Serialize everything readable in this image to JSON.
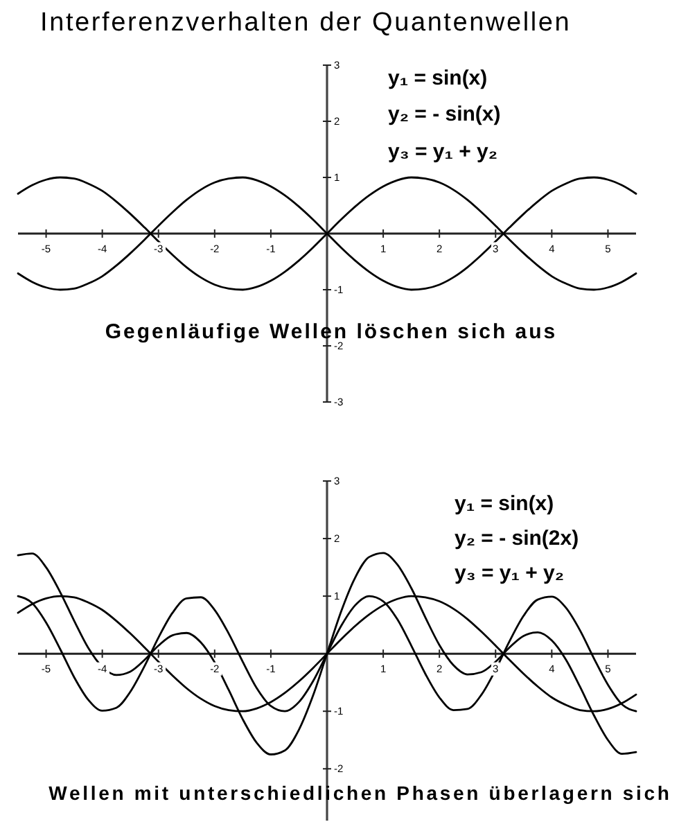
{
  "chart_data": [
    {
      "type": "line",
      "title": "Interferenzverhalten der Quantenwellen",
      "annotations": [
        "y₁ = sin(x)",
        "y₂ = - sin(x)",
        "y₃ = y₁ + y₂",
        "Gegenläufige Wellen löschen sich aus"
      ],
      "x": [
        -5.5,
        -5.25,
        -5,
        -4.75,
        -4.5,
        -4.25,
        -4,
        -3.75,
        -3.5,
        -3.25,
        -3,
        -2.75,
        -2.5,
        -2.25,
        -2,
        -1.75,
        -1.5,
        -1.25,
        -1,
        -0.75,
        -0.5,
        -0.25,
        0,
        0.25,
        0.5,
        0.75,
        1,
        1.25,
        1.5,
        1.75,
        2,
        2.25,
        2.5,
        2.75,
        3,
        3.25,
        3.5,
        3.75,
        4,
        4.25,
        4.5,
        4.75,
        5,
        5.25,
        5.5
      ],
      "xlim": [
        -5.5,
        5.5
      ],
      "ylim": [
        -3,
        3
      ],
      "xticks": [
        -5,
        -4,
        -3,
        -2,
        -1,
        1,
        2,
        3,
        4,
        5
      ],
      "yticks": [
        -3,
        -2,
        -1,
        1,
        2,
        3
      ],
      "series": [
        {
          "color": "#000000",
          "values": [
            0.71,
            0.86,
            0.96,
            1.0,
            0.98,
            0.89,
            0.76,
            0.57,
            0.35,
            0.11,
            -0.14,
            -0.38,
            -0.6,
            -0.78,
            -0.91,
            -0.98,
            -1.0,
            -0.95,
            -0.84,
            -0.68,
            -0.48,
            -0.25,
            0,
            0.25,
            0.48,
            0.68,
            0.84,
            0.95,
            1.0,
            0.98,
            0.91,
            0.78,
            0.6,
            0.38,
            0.14,
            -0.11,
            -0.35,
            -0.57,
            -0.76,
            -0.89,
            -0.98,
            -1.0,
            -0.96,
            -0.86,
            -0.71
          ]
        },
        {
          "color": "#000000",
          "values": [
            -0.71,
            -0.86,
            -0.96,
            -1.0,
            -0.98,
            -0.89,
            -0.76,
            -0.57,
            -0.35,
            -0.11,
            0.14,
            0.38,
            0.6,
            0.78,
            0.91,
            0.98,
            1.0,
            0.95,
            0.84,
            0.68,
            0.48,
            0.25,
            0,
            -0.25,
            -0.48,
            -0.68,
            -0.84,
            -0.95,
            -1.0,
            -0.98,
            -0.91,
            -0.78,
            -0.6,
            -0.38,
            -0.14,
            0.11,
            0.35,
            0.57,
            0.76,
            0.89,
            0.98,
            1.0,
            0.96,
            0.86,
            0.71
          ]
        }
      ]
    },
    {
      "type": "line",
      "annotations": [
        "y₁ = sin(x)",
        "y₂ = - sin(2x)",
        "y₃ = y₁ + y₂",
        "Wellen mit unterschiedlichen Phasen überlagern sich"
      ],
      "x": [
        -5.5,
        -5.25,
        -5,
        -4.75,
        -4.5,
        -4.25,
        -4,
        -3.75,
        -3.5,
        -3.25,
        -3,
        -2.75,
        -2.5,
        -2.25,
        -2,
        -1.75,
        -1.5,
        -1.25,
        -1,
        -0.75,
        -0.5,
        -0.25,
        0,
        0.25,
        0.5,
        0.75,
        1,
        1.25,
        1.5,
        1.75,
        2,
        2.25,
        2.5,
        2.75,
        3,
        3.25,
        3.5,
        3.75,
        4,
        4.25,
        4.5,
        4.75,
        5,
        5.25,
        5.5
      ],
      "xlim": [
        -5.5,
        5.5
      ],
      "ylim": [
        -2.9,
        3
      ],
      "xticks": [
        -5,
        -4,
        -3,
        -2,
        -1,
        1,
        2,
        3,
        4,
        5
      ],
      "yticks": [
        -2,
        -1,
        1,
        2,
        3
      ],
      "series": [
        {
          "color": "#000000",
          "values": [
            0.71,
            0.86,
            0.96,
            1.0,
            0.98,
            0.89,
            0.76,
            0.57,
            0.35,
            0.11,
            -0.14,
            -0.38,
            -0.6,
            -0.78,
            -0.91,
            -0.98,
            -1.0,
            -0.95,
            -0.84,
            -0.68,
            -0.48,
            -0.25,
            0,
            0.25,
            0.48,
            0.68,
            0.84,
            0.95,
            1.0,
            0.98,
            0.91,
            0.78,
            0.6,
            0.38,
            0.14,
            -0.11,
            -0.35,
            -0.57,
            -0.76,
            -0.89,
            -0.98,
            -1.0,
            -0.96,
            -0.86,
            -0.71
          ]
        },
        {
          "color": "#000000",
          "values": [
            1.0,
            0.88,
            0.54,
            0.08,
            -0.41,
            -0.8,
            -0.99,
            -0.94,
            -0.66,
            -0.22,
            0.28,
            0.71,
            0.96,
            0.98,
            0.76,
            0.35,
            -0.14,
            -0.6,
            -0.91,
            -1.0,
            -0.84,
            -0.48,
            0,
            0.48,
            0.84,
            1.0,
            0.91,
            0.6,
            0.14,
            -0.35,
            -0.76,
            -0.98,
            -0.96,
            -0.71,
            -0.28,
            0.22,
            0.66,
            0.94,
            0.99,
            0.8,
            0.41,
            -0.08,
            -0.54,
            -0.88,
            -1.0
          ]
        },
        {
          "color": "#000000",
          "values": [
            1.71,
            1.74,
            1.5,
            1.07,
            0.57,
            0.1,
            -0.23,
            -0.37,
            -0.31,
            -0.11,
            0.14,
            0.32,
            0.36,
            0.2,
            -0.15,
            -0.63,
            -1.14,
            -1.55,
            -1.75,
            -1.68,
            -1.32,
            -0.73,
            0,
            0.73,
            1.32,
            1.68,
            1.75,
            1.55,
            1.14,
            0.63,
            0.15,
            -0.2,
            -0.36,
            -0.32,
            -0.14,
            0.11,
            0.31,
            0.37,
            0.23,
            -0.1,
            -0.57,
            -1.07,
            -1.5,
            -1.74,
            -1.71
          ]
        }
      ]
    }
  ]
}
